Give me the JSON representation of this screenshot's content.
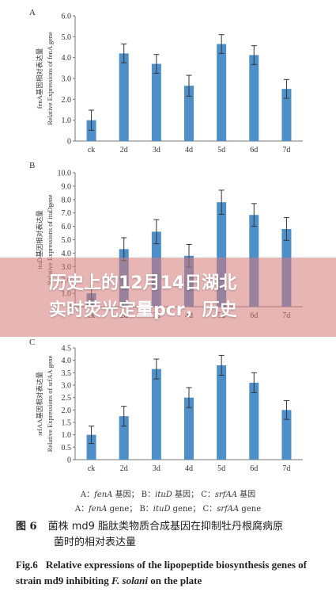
{
  "chart_data": [
    {
      "type": "bar",
      "panel": "A",
      "ylabel": "fenA基因相对表达量",
      "ylabel_en": "Relative Expressions of fenA gene",
      "categories": [
        "ck",
        "2d",
        "3d",
        "4d",
        "5d",
        "6d",
        "7d"
      ],
      "values": [
        1.0,
        4.2,
        3.7,
        2.65,
        4.65,
        4.12,
        2.5
      ],
      "errors": [
        0.48,
        0.45,
        0.45,
        0.5,
        0.45,
        0.45,
        0.45
      ],
      "ylim": [
        0,
        6.0
      ],
      "yticks": [
        "0",
        "1.0",
        "2.0",
        "3.0",
        "4.0",
        "5.0",
        "6.0"
      ],
      "grid": false
    },
    {
      "type": "bar",
      "panel": "B",
      "ylabel": "ituD基因相对表达量",
      "ylabel_en": "Relative Expressions of ituDgene",
      "categories": [
        "ck",
        "2d",
        "3d",
        "4d",
        "5d",
        "6d",
        "7d"
      ],
      "values": [
        1.0,
        4.3,
        5.6,
        3.8,
        7.8,
        6.85,
        5.8
      ],
      "errors": [
        0.45,
        0.85,
        0.9,
        0.85,
        0.9,
        0.85,
        0.85
      ],
      "ylim": [
        0,
        10.0
      ],
      "yticks": [
        "0",
        "1.0",
        "2.0",
        "3.0",
        "4.0",
        "5.0",
        "6.0",
        "7.0",
        "8.0",
        "9.0",
        "10.0"
      ],
      "grid": false
    },
    {
      "type": "bar",
      "panel": "C",
      "ylabel": "srfAA基因相对表达量",
      "ylabel_en": "Relative Expressions of srfAA gene",
      "categories": [
        "ck",
        "2d",
        "3d",
        "4d",
        "5d",
        "6d",
        "7d"
      ],
      "values": [
        1.0,
        1.75,
        3.65,
        2.5,
        3.8,
        3.1,
        2.0
      ],
      "errors": [
        0.35,
        0.4,
        0.4,
        0.4,
        0.4,
        0.4,
        0.38
      ],
      "ylim": [
        0,
        4.5
      ],
      "yticks": [
        "0",
        "0.5",
        "1.0",
        "1.5",
        "2.0",
        "2.5",
        "3.0",
        "3.5",
        "4.0",
        "4.5"
      ],
      "grid": false
    }
  ],
  "banner": {
    "line1": "历史上的12月14日湖北",
    "line2": "实时荧光定量pcr，历史"
  },
  "legend": {
    "sep": "；",
    "cn": [
      {
        "prefix": "A：",
        "gene": "fenA",
        "suffix": " 基因"
      },
      {
        "prefix": "B：",
        "gene": "ituD",
        "suffix": " 基因"
      },
      {
        "prefix": "C：",
        "gene": "srfAA",
        "suffix": " 基因"
      }
    ],
    "en": [
      {
        "prefix": "A：",
        "gene": "fenA",
        "suffix": " gene"
      },
      {
        "prefix": "B：",
        "gene": "ituD",
        "suffix": " gene"
      },
      {
        "prefix": "C：",
        "gene": "srfAA",
        "suffix": " gene"
      }
    ]
  },
  "caption": {
    "cn_label": "图 6",
    "cn_line1": "菌株 md9 脂肽类物质合成基因在抑制牡丹根腐病原",
    "cn_line2": "菌时的相对表达量",
    "en_label": "Fig.6",
    "en_part1": "Relative expressions of the lipopeptide biosynthesis genes of strain md9 inhibiting ",
    "en_species": "F. solani",
    "en_part2": " on the plate"
  }
}
